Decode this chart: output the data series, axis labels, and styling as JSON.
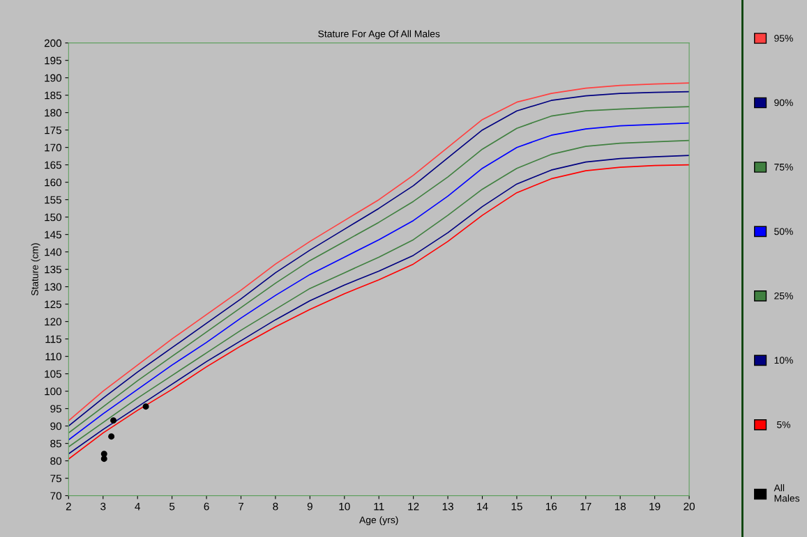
{
  "chart_data": {
    "type": "line",
    "title": "Stature For Age Of All Males",
    "xlabel": "Age (yrs)",
    "ylabel": "Stature (cm)",
    "x": [
      2,
      3,
      4,
      5,
      6,
      7,
      8,
      9,
      10,
      11,
      12,
      13,
      14,
      15,
      16,
      17,
      18,
      19,
      20
    ],
    "series": [
      {
        "name": "95%",
        "color": "#ff4040",
        "values": [
          91.5,
          100,
          107.5,
          115,
          122,
          129,
          136.5,
          143,
          149,
          155,
          162,
          170,
          178,
          183,
          185.5,
          187,
          187.8,
          188.2,
          188.5
        ]
      },
      {
        "name": "90%",
        "color": "#000080",
        "values": [
          90,
          98,
          105.5,
          112.5,
          119.5,
          126.5,
          134,
          140.5,
          146.5,
          152.5,
          159,
          167,
          175,
          180.5,
          183.5,
          184.8,
          185.5,
          185.8,
          186
        ]
      },
      {
        "name": "75%",
        "color": "#408040",
        "values": [
          88,
          95.5,
          103,
          110,
          117,
          124,
          131,
          137.5,
          143,
          148.5,
          154.5,
          161.5,
          169.5,
          175.5,
          179,
          180.5,
          181,
          181.4,
          181.7
        ]
      },
      {
        "name": "50%",
        "color": "#0000ff",
        "values": [
          86,
          93.5,
          100.5,
          107.5,
          114,
          121,
          127.5,
          133.5,
          138.5,
          143.5,
          149,
          156,
          164,
          170,
          173.5,
          175.3,
          176.2,
          176.6,
          177
        ]
      },
      {
        "name": "25%",
        "color": "#408040",
        "values": [
          84,
          91,
          98,
          104.5,
          111,
          117.5,
          123.5,
          129.5,
          134,
          138.5,
          143.5,
          150.5,
          158,
          164,
          168,
          170.3,
          171.2,
          171.6,
          172
        ]
      },
      {
        "name": "10%",
        "color": "#000080",
        "values": [
          82,
          89,
          95.5,
          102,
          108.5,
          114.5,
          120.5,
          126,
          130.5,
          134.5,
          139,
          145.5,
          153,
          159.5,
          163.5,
          165.8,
          166.8,
          167.3,
          167.7
        ]
      },
      {
        "name": " 5%",
        "color": "#ff0000",
        "values": [
          80.5,
          88,
          94.5,
          100.5,
          107,
          113,
          118.5,
          123.5,
          128,
          132,
          136.5,
          143,
          150.5,
          157,
          161,
          163.3,
          164.3,
          164.8,
          165
        ]
      },
      {
        "name": "All\nMales",
        "type": "scatter",
        "marker": "circle",
        "color": "#000000",
        "x": [
          3.03,
          3.03,
          3.24,
          3.3,
          4.24
        ],
        "values": [
          82,
          80.6,
          87,
          91.6,
          95.6
        ]
      }
    ],
    "xlim": [
      2,
      20
    ],
    "ylim": [
      70,
      200
    ],
    "xticks": [
      2,
      3,
      4,
      5,
      6,
      7,
      8,
      9,
      10,
      11,
      12,
      13,
      14,
      15,
      16,
      17,
      18,
      19,
      20
    ],
    "yticks": [
      70,
      75,
      80,
      85,
      90,
      95,
      100,
      105,
      110,
      115,
      120,
      125,
      130,
      135,
      140,
      145,
      150,
      155,
      160,
      165,
      170,
      175,
      180,
      185,
      190,
      195,
      200
    ],
    "grid": false,
    "legend": "right",
    "marker": "none",
    "line_style": "solid"
  }
}
